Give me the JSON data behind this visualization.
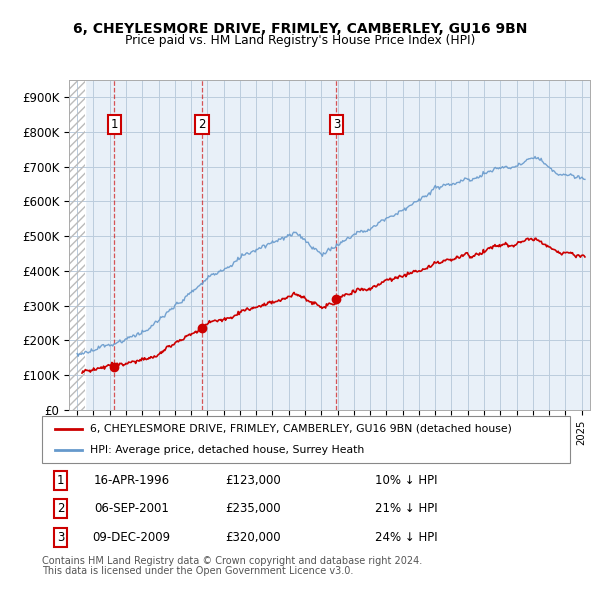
{
  "title": "6, CHEYLESMORE DRIVE, FRIMLEY, CAMBERLEY, GU16 9BN",
  "subtitle": "Price paid vs. HM Land Registry's House Price Index (HPI)",
  "ylim": [
    0,
    950000
  ],
  "yticks": [
    0,
    100000,
    200000,
    300000,
    400000,
    500000,
    600000,
    700000,
    800000,
    900000
  ],
  "ytick_labels": [
    "£0",
    "£100K",
    "£200K",
    "£300K",
    "£400K",
    "£500K",
    "£600K",
    "£700K",
    "£800K",
    "£900K"
  ],
  "xlim_start": 1993.5,
  "xlim_end": 2025.5,
  "hatch_end": 1994.5,
  "transactions": [
    {
      "num": 1,
      "date": "16-APR-1996",
      "year": 1996.29,
      "price": 123000,
      "pct": "10%",
      "dir": "↓"
    },
    {
      "num": 2,
      "date": "06-SEP-2001",
      "year": 2001.68,
      "price": 235000,
      "pct": "21%",
      "dir": "↓"
    },
    {
      "num": 3,
      "date": "09-DEC-2009",
      "year": 2009.93,
      "price": 320000,
      "pct": "24%",
      "dir": "↓"
    }
  ],
  "legend_label_red": "6, CHEYLESMORE DRIVE, FRIMLEY, CAMBERLEY, GU16 9BN (detached house)",
  "legend_label_blue": "HPI: Average price, detached house, Surrey Heath",
  "footer1": "Contains HM Land Registry data © Crown copyright and database right 2024.",
  "footer2": "This data is licensed under the Open Government Licence v3.0.",
  "red_color": "#cc0000",
  "blue_color": "#6699cc",
  "hatch_color": "#bbbbbb",
  "grid_color": "#bbccdd",
  "plot_bg": "#e8f0f8"
}
